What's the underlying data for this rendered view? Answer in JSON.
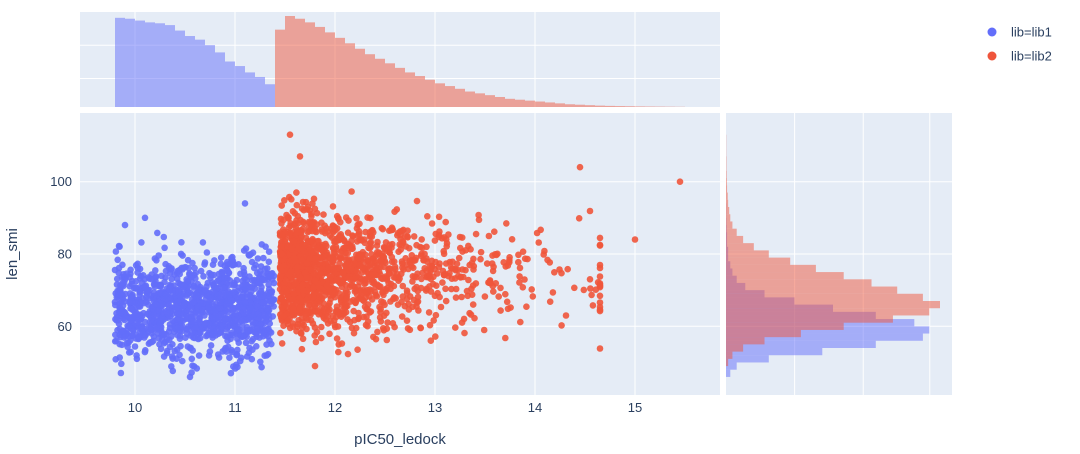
{
  "chart_data": {
    "type": "scatter",
    "marginals": {
      "x": "histogram",
      "y": "histogram"
    },
    "xlabel": "pIC50_ledock",
    "ylabel": "len_smi",
    "xlim": [
      9.45,
      15.85
    ],
    "ylim": [
      41,
      119
    ],
    "x_ticks": [
      "10",
      "11",
      "12",
      "13",
      "14",
      "15"
    ],
    "y_ticks": [
      "60",
      "80",
      "100"
    ],
    "grid": true,
    "legend_position": "top-right",
    "series": [
      {
        "name": "lib=lib1",
        "color": "#636efa",
        "x_range": [
          9.8,
          11.4
        ],
        "y_range": [
          46,
          94
        ],
        "x_hist": {
          "edges_start": 9.8,
          "bin_width": 0.1,
          "counts": [
            0.98,
            0.97,
            0.95,
            0.93,
            0.92,
            0.9,
            0.84,
            0.78,
            0.74,
            0.68,
            0.6,
            0.5,
            0.45,
            0.38,
            0.33,
            0.25
          ]
        },
        "y_hist": {
          "edges_start": 46,
          "bin_width": 2,
          "counts": [
            0.02,
            0.05,
            0.2,
            0.45,
            0.7,
            0.92,
            0.95,
            0.88,
            0.7,
            0.5,
            0.32,
            0.18,
            0.09,
            0.05,
            0.03,
            0.02,
            0.01,
            0.01,
            0.005,
            0.005,
            0.003,
            0.002,
            0.001,
            0.001
          ]
        }
      },
      {
        "name": "lib=lib2",
        "color": "#ef553b",
        "x_range": [
          11.4,
          15.5
        ],
        "y_range": [
          49,
          113
        ],
        "x_hist": {
          "edges_start": 11.4,
          "bin_width": 0.1,
          "counts": [
            0.85,
            1.0,
            0.97,
            0.93,
            0.88,
            0.82,
            0.76,
            0.7,
            0.64,
            0.58,
            0.53,
            0.48,
            0.43,
            0.38,
            0.34,
            0.3,
            0.26,
            0.23,
            0.2,
            0.17,
            0.15,
            0.13,
            0.11,
            0.09,
            0.08,
            0.07,
            0.06,
            0.05,
            0.04,
            0.03,
            0.025,
            0.02,
            0.015,
            0.012,
            0.01,
            0.008,
            0.006,
            0.005,
            0.004,
            0.003,
            0.002
          ]
        },
        "y_hist": {
          "edges_start": 49,
          "bin_width": 2,
          "counts": [
            0.01,
            0.03,
            0.08,
            0.18,
            0.35,
            0.55,
            0.78,
            0.95,
            1.0,
            0.92,
            0.8,
            0.68,
            0.55,
            0.42,
            0.3,
            0.2,
            0.13,
            0.08,
            0.05,
            0.03,
            0.02,
            0.015,
            0.01,
            0.008,
            0.005,
            0.004,
            0.003,
            0.002,
            0.002,
            0.001,
            0.001,
            0.001
          ]
        }
      }
    ]
  }
}
